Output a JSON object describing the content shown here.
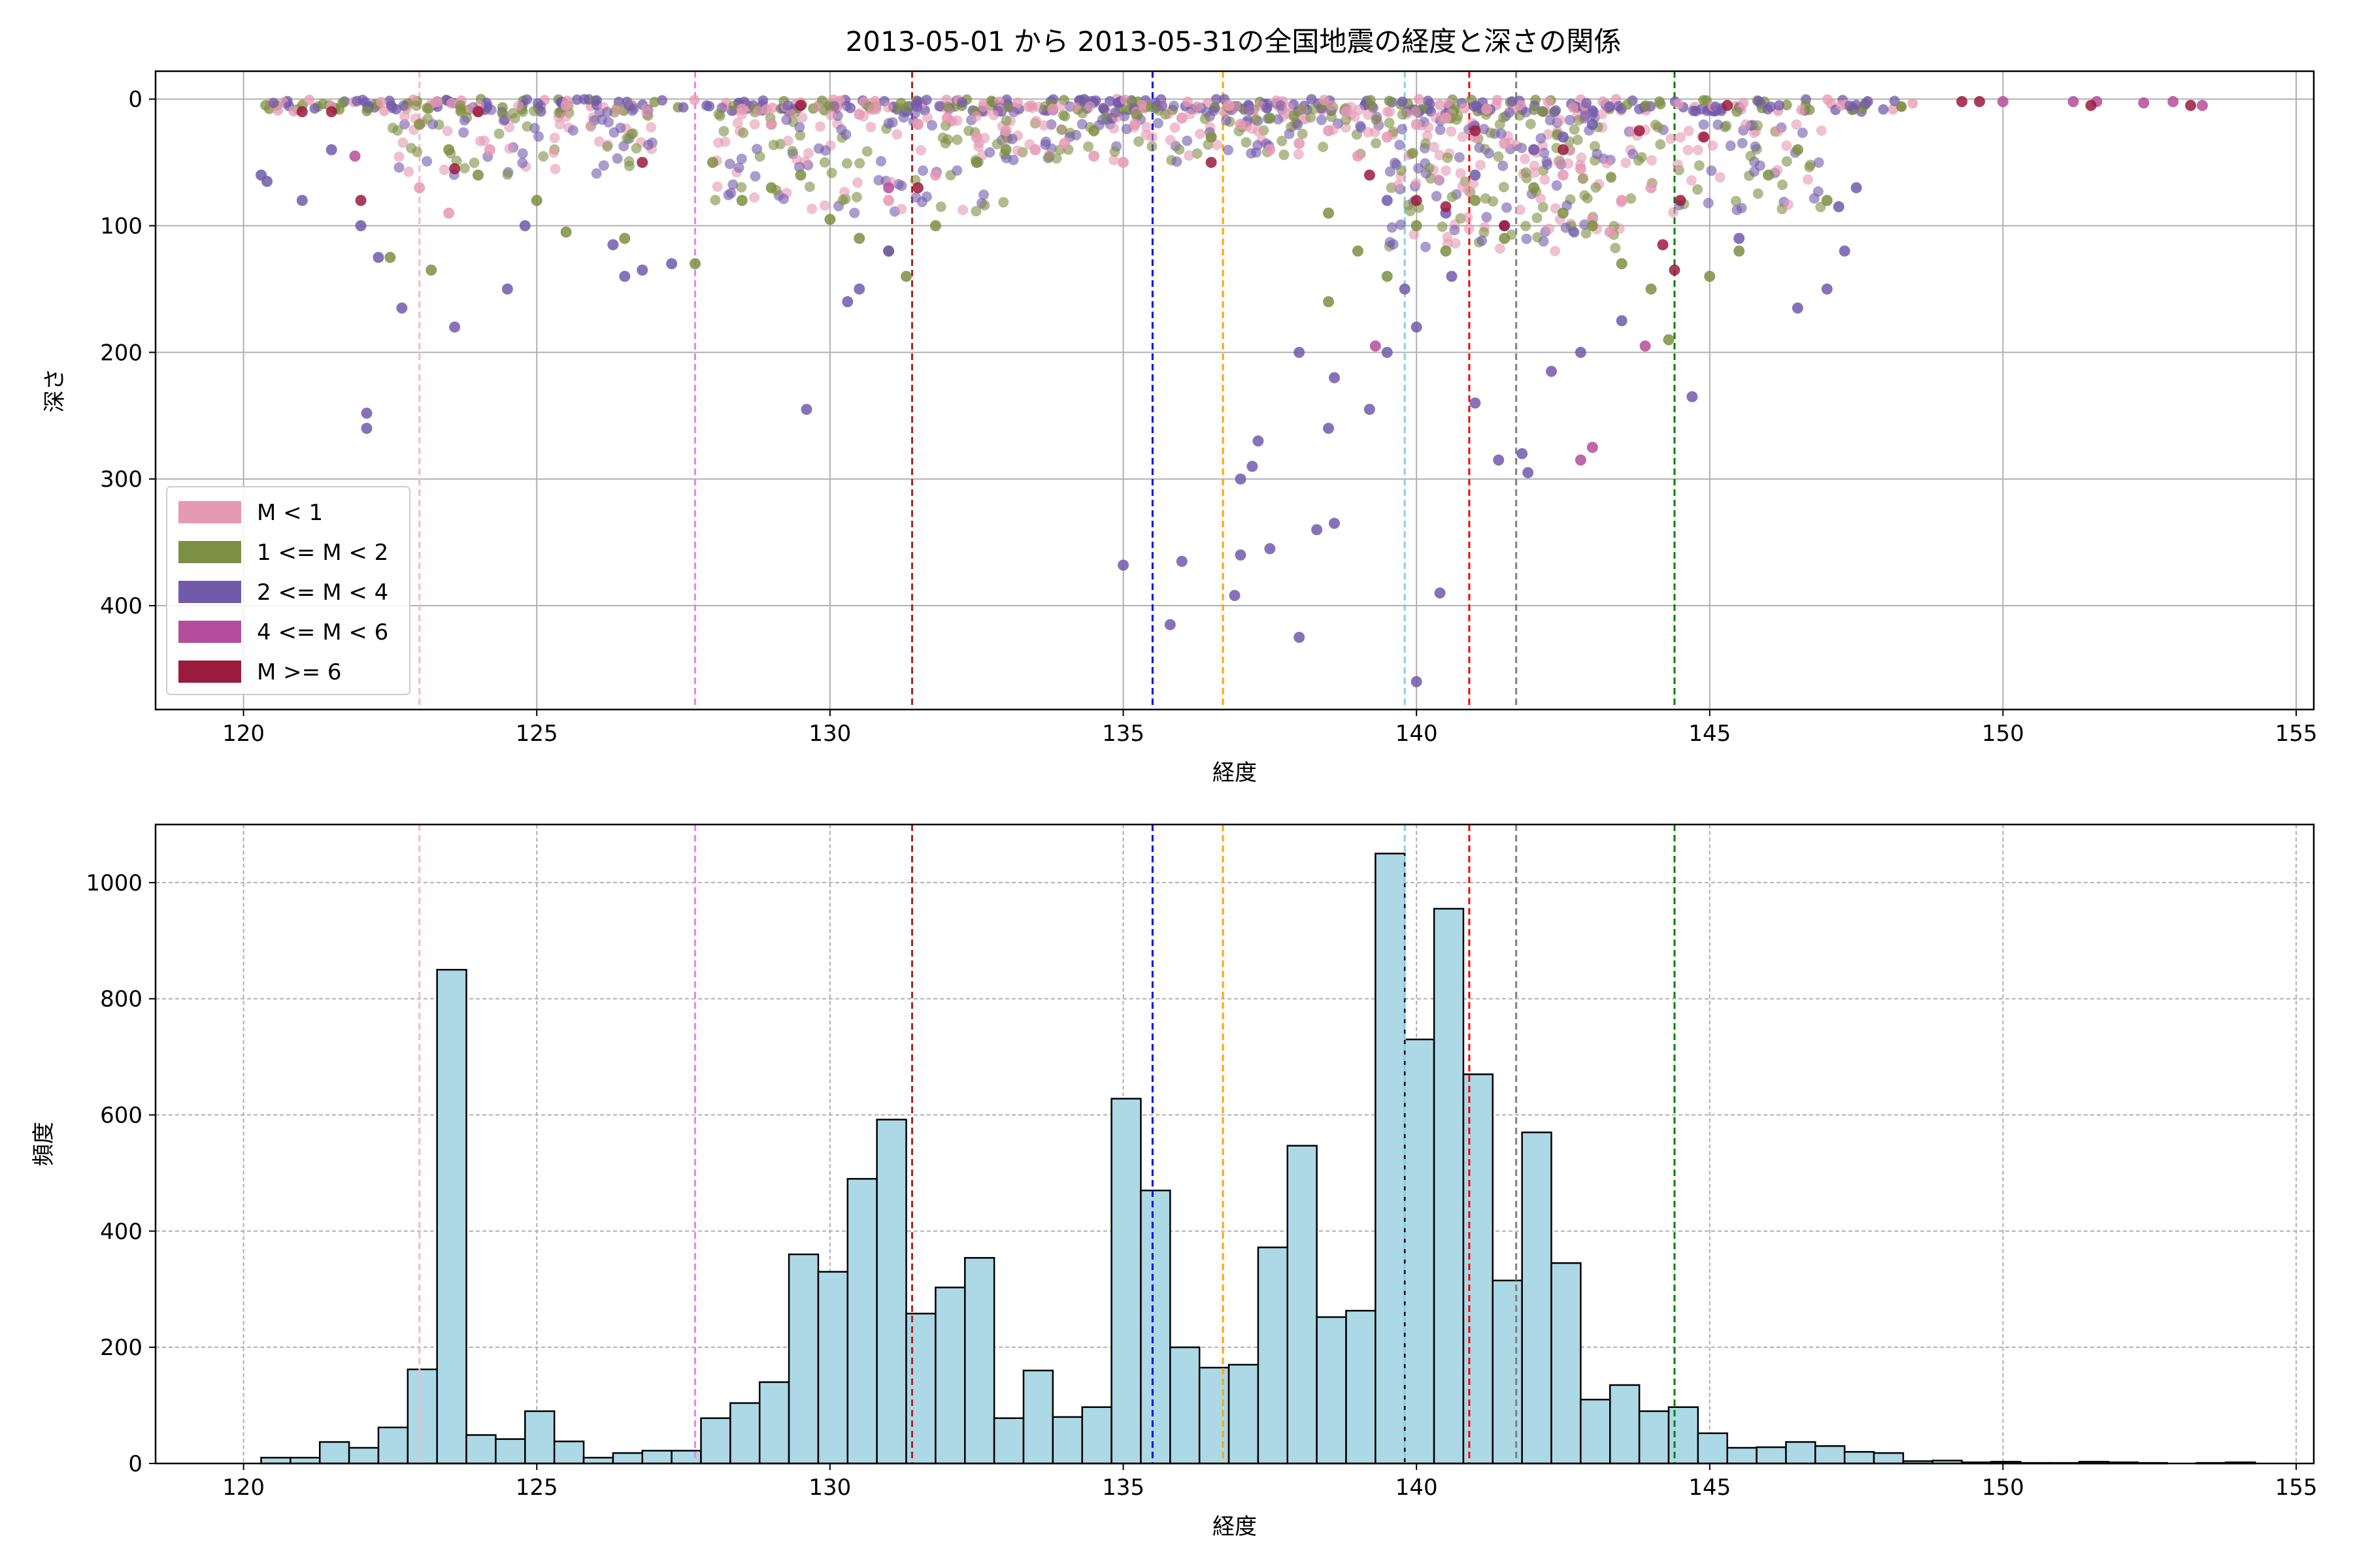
{
  "figure": {
    "title": "2013-05-01 から 2013-05-31の全国地震の経度と深さの関係"
  },
  "colors": {
    "m_lt1": "#e599b3",
    "m_1_2": "#7d8f42",
    "m_2_4": "#715aaa",
    "m_4_6": "#b44d9b",
    "m_ge6": "#9b1b3e",
    "hist_fill": "#add8e6",
    "hist_edge": "#000000",
    "grid": "#b0b0b0"
  },
  "chart_data": [
    {
      "type": "scatter",
      "title": "2013-05-01 から 2013-05-31の全国地震の経度と深さの関係",
      "xlabel": "経度",
      "ylabel": "深さ",
      "xlim": [
        118.5,
        155.3
      ],
      "ylim": [
        482,
        -22
      ],
      "y_inverted": true,
      "xticks": [
        120,
        125,
        130,
        135,
        140,
        145,
        150,
        155
      ],
      "yticks": [
        0,
        100,
        200,
        300,
        400
      ],
      "grid": true,
      "legend_position": "lower-left",
      "legend": [
        "M < 1",
        "1 <= M < 2",
        "2 <= M < 4",
        "4 <= M < 6",
        "M >= 6"
      ],
      "vlines": [
        {
          "x": 123.0,
          "color": "#ffb6c1"
        },
        {
          "x": 127.7,
          "color": "#ee82ee"
        },
        {
          "x": 131.4,
          "color": "#b22222"
        },
        {
          "x": 135.5,
          "color": "#0000ff"
        },
        {
          "x": 136.7,
          "color": "#ffa500"
        },
        {
          "x": 139.8,
          "color": "#87ceeb"
        },
        {
          "x": 140.9,
          "color": "#ff0000"
        },
        {
          "x": 141.7,
          "color": "#808080"
        },
        {
          "x": 144.4,
          "color": "#008000"
        }
      ],
      "series": [
        {
          "name": "M < 1",
          "color": "#e599b3",
          "points": [
            [
              123.3,
              2
            ],
            [
              124.0,
              10
            ],
            [
              125.5,
              5
            ],
            [
              128.5,
              8
            ],
            [
              129.5,
              3
            ],
            [
              130.5,
              12
            ],
            [
              131.5,
              20
            ],
            [
              132.0,
              15
            ],
            [
              132.5,
              30
            ],
            [
              133.0,
              25
            ],
            [
              133.5,
              40
            ],
            [
              134.0,
              35
            ],
            [
              134.5,
              45
            ],
            [
              135.0,
              50
            ],
            [
              135.2,
              20
            ],
            [
              136.0,
              15
            ],
            [
              136.5,
              30
            ],
            [
              137.0,
              20
            ],
            [
              137.5,
              40
            ],
            [
              138.0,
              35
            ],
            [
              138.5,
              25
            ],
            [
              139.0,
              45
            ],
            [
              139.5,
              30
            ],
            [
              140.0,
              20
            ],
            [
              140.5,
              15
            ],
            [
              141.0,
              30
            ],
            [
              141.5,
              35
            ],
            [
              142.0,
              40
            ],
            [
              142.5,
              60
            ],
            [
              143.0,
              95
            ],
            [
              143.3,
              105
            ],
            [
              143.5,
              80
            ],
            [
              123.0,
              70
            ],
            [
              123.5,
              90
            ],
            [
              124.2,
              40
            ],
            [
              129.0,
              20
            ],
            [
              131.0,
              80
            ],
            [
              131.8,
              60
            ],
            [
              133.8,
              8
            ],
            [
              136.8,
              5
            ],
            [
              138.8,
              10
            ],
            [
              141.2,
              8
            ],
            [
              142.8,
              55
            ],
            [
              144.0,
              70
            ]
          ]
        },
        {
          "name": "1 <= M < 2",
          "color": "#7d8f42",
          "points": [
            [
              123.0,
              20
            ],
            [
              123.5,
              40
            ],
            [
              124.0,
              60
            ],
            [
              125.0,
              80
            ],
            [
              125.5,
              105
            ],
            [
              122.5,
              125
            ],
            [
              123.2,
              135
            ],
            [
              128.0,
              50
            ],
            [
              128.5,
              80
            ],
            [
              129.0,
              70
            ],
            [
              129.5,
              60
            ],
            [
              130.0,
              95
            ],
            [
              130.5,
              110
            ],
            [
              131.0,
              120
            ],
            [
              131.3,
              140
            ],
            [
              131.8,
              100
            ],
            [
              132.5,
              50
            ],
            [
              133.0,
              40
            ],
            [
              134.5,
              25
            ],
            [
              136.5,
              30
            ],
            [
              137.5,
              15
            ],
            [
              138.5,
              90
            ],
            [
              139.0,
              120
            ],
            [
              139.5,
              140
            ],
            [
              140.0,
              100
            ],
            [
              140.5,
              120
            ],
            [
              141.0,
              80
            ],
            [
              141.5,
              110
            ],
            [
              142.0,
              70
            ],
            [
              142.5,
              90
            ],
            [
              143.0,
              100
            ],
            [
              143.5,
              130
            ],
            [
              144.0,
              150
            ],
            [
              144.3,
              190
            ],
            [
              145.0,
              140
            ],
            [
              145.5,
              120
            ],
            [
              146.0,
              60
            ],
            [
              146.5,
              40
            ],
            [
              147.0,
              80
            ],
            [
              138.5,
              160
            ],
            [
              126.5,
              110
            ],
            [
              127.7,
              130
            ]
          ]
        },
        {
          "name": "2 <= M < 4",
          "color": "#715aaa",
          "points": [
            [
              120.3,
              60
            ],
            [
              120.4,
              65
            ],
            [
              121.0,
              80
            ],
            [
              121.5,
              40
            ],
            [
              122.0,
              100
            ],
            [
              122.3,
              125
            ],
            [
              122.7,
              165
            ],
            [
              123.6,
              180
            ],
            [
              124.5,
              150
            ],
            [
              122.1,
              248
            ],
            [
              122.1,
              260
            ],
            [
              124.8,
              100
            ],
            [
              126.3,
              115
            ],
            [
              126.8,
              135
            ],
            [
              126.5,
              140
            ],
            [
              127.3,
              130
            ],
            [
              129.6,
              245
            ],
            [
              130.3,
              160
            ],
            [
              130.5,
              150
            ],
            [
              131.0,
              120
            ],
            [
              135.0,
              368
            ],
            [
              135.8,
              415
            ],
            [
              136.0,
              365
            ],
            [
              136.9,
              392
            ],
            [
              137.0,
              360
            ],
            [
              137.0,
              300
            ],
            [
              137.2,
              290
            ],
            [
              137.3,
              270
            ],
            [
              137.5,
              355
            ],
            [
              138.0,
              425
            ],
            [
              138.3,
              340
            ],
            [
              138.6,
              335
            ],
            [
              138.5,
              260
            ],
            [
              138.6,
              220
            ],
            [
              138.0,
              200
            ],
            [
              139.2,
              245
            ],
            [
              139.5,
              200
            ],
            [
              140.0,
              460
            ],
            [
              140.4,
              390
            ],
            [
              140.6,
              140
            ],
            [
              141.0,
              240
            ],
            [
              141.4,
              285
            ],
            [
              141.8,
              280
            ],
            [
              141.9,
              295
            ],
            [
              142.3,
              215
            ],
            [
              142.8,
              200
            ],
            [
              143.5,
              175
            ],
            [
              144.7,
              235
            ],
            [
              145.5,
              110
            ],
            [
              146.5,
              165
            ],
            [
              147.0,
              150
            ],
            [
              147.3,
              120
            ],
            [
              147.2,
              85
            ],
            [
              147.5,
              70
            ],
            [
              140.0,
              180
            ],
            [
              139.8,
              150
            ],
            [
              141.0,
              60
            ],
            [
              142.0,
              40
            ],
            [
              142.5,
              30
            ],
            [
              143.0,
              20
            ],
            [
              139.5,
              80
            ],
            [
              141.5,
              100
            ],
            [
              140.5,
              90
            ]
          ]
        },
        {
          "name": "4 <= M < 6",
          "color": "#b44d9b",
          "points": [
            [
              121.9,
              45
            ],
            [
              131.0,
              70
            ],
            [
              139.3,
              195
            ],
            [
              142.8,
              285
            ],
            [
              143.0,
              275
            ],
            [
              143.9,
              195
            ],
            [
              150.0,
              2
            ],
            [
              151.2,
              2
            ],
            [
              151.6,
              2
            ],
            [
              152.4,
              3
            ],
            [
              152.9,
              2
            ],
            [
              153.4,
              5
            ]
          ]
        },
        {
          "name": "M >= 6",
          "color": "#9b1b3e",
          "points": [
            [
              121.0,
              10
            ],
            [
              121.5,
              10
            ],
            [
              122.0,
              80
            ],
            [
              123.6,
              55
            ],
            [
              124.0,
              10
            ],
            [
              126.8,
              50
            ],
            [
              129.5,
              5
            ],
            [
              131.5,
              70
            ],
            [
              136.5,
              50
            ],
            [
              139.2,
              60
            ],
            [
              140.0,
              80
            ],
            [
              140.5,
              85
            ],
            [
              141.0,
              25
            ],
            [
              141.5,
              100
            ],
            [
              142.5,
              40
            ],
            [
              143.8,
              25
            ],
            [
              144.2,
              115
            ],
            [
              144.4,
              135
            ],
            [
              144.5,
              80
            ],
            [
              144.9,
              30
            ],
            [
              145.3,
              5
            ],
            [
              149.3,
              2
            ],
            [
              149.6,
              2
            ],
            [
              151.5,
              5
            ],
            [
              153.2,
              5
            ]
          ]
        }
      ]
    },
    {
      "type": "bar",
      "subtype": "histogram",
      "xlabel": "経度",
      "ylabel": "頻度",
      "xlim": [
        118.5,
        155.3
      ],
      "ylim": [
        0,
        1100
      ],
      "xticks": [
        120,
        125,
        130,
        135,
        140,
        145,
        150,
        155
      ],
      "yticks": [
        0,
        200,
        400,
        600,
        800,
        1000
      ],
      "grid": true,
      "bin_start": 120.3,
      "bin_width": 0.5,
      "values": [
        10,
        10,
        37,
        27,
        62,
        162,
        850,
        49,
        42,
        90,
        38,
        10,
        18,
        22,
        22,
        78,
        104,
        140,
        360,
        330,
        490,
        592,
        258,
        303,
        354,
        78,
        160,
        80,
        97,
        628,
        470,
        200,
        165,
        170,
        372,
        547,
        252,
        263,
        1050,
        730,
        955,
        670,
        315,
        570,
        345,
        110,
        135,
        90,
        97,
        52,
        27,
        28,
        37,
        30,
        20,
        18,
        4,
        5,
        2,
        3,
        1,
        1,
        3,
        2,
        1,
        0,
        1,
        2,
        0
      ]
    }
  ]
}
